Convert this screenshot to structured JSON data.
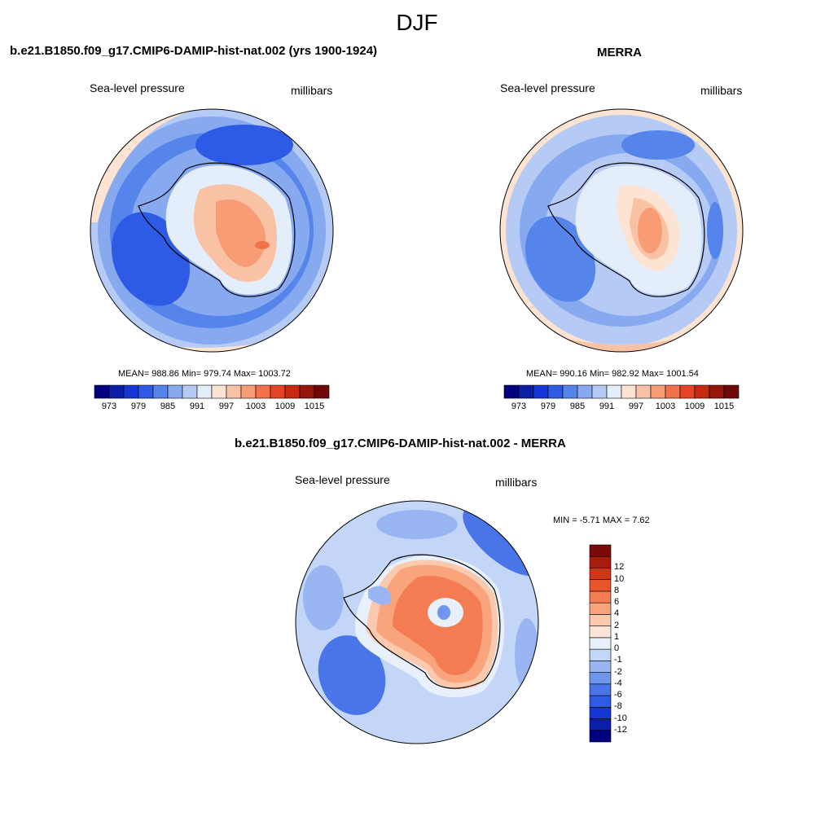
{
  "title": "DJF",
  "panels": [
    {
      "title": "b.e21.B1850.f09_g17.CMIP6-DAMIP-hist-nat.002 (yrs 1900-1924)",
      "left_label": "Sea-level pressure",
      "right_label": "millibars",
      "stats": "MEAN= 988.86  Min= 979.74  Max= 1003.72"
    },
    {
      "title": "MERRA",
      "left_label": "Sea-level pressure",
      "right_label": "millibars",
      "stats": "MEAN= 990.16  Min= 982.92  Max= 1001.54"
    },
    {
      "title": "b.e21.B1850.f09_g17.CMIP6-DAMIP-hist-nat.002 - MERRA",
      "left_label": "Sea-level pressure",
      "right_label": "millibars",
      "stats": "MIN =  -5.71 MAX =   7.62"
    }
  ],
  "colorbar_abs": {
    "colors": [
      "#000080",
      "#0a1fa5",
      "#1436d4",
      "#2d5be6",
      "#5585ea",
      "#86a9f0",
      "#b5cbf5",
      "#e4eefb",
      "#fde4d2",
      "#fac2a5",
      "#f79c75",
      "#f2714a",
      "#e54525",
      "#c62a10",
      "#96160a",
      "#6e0808"
    ],
    "tick_labels": [
      "973",
      "979",
      "985",
      "991",
      "997",
      "1003",
      "1009",
      "1015"
    ]
  },
  "colorbar_diff": {
    "colors": [
      "#000080",
      "#0a1fa5",
      "#1436d4",
      "#2d5be6",
      "#4a75e8",
      "#6f95ec",
      "#9ab6f2",
      "#c3d6f7",
      "#e8f0fb",
      "#fde6d8",
      "#fbc9ae",
      "#f9a47c",
      "#f47c53",
      "#e9542c",
      "#d03716",
      "#a81c0c",
      "#7a0a08"
    ],
    "tick_labels": [
      "-12",
      "-10",
      "-8",
      "-6",
      "-4",
      "-2",
      "-1",
      "0",
      "1",
      "2",
      "4",
      "6",
      "8",
      "10",
      "12"
    ]
  },
  "chart_data": [
    {
      "type": "heatmap",
      "title": "b.e21.B1850.f09_g17.CMIP6-DAMIP-hist-nat.002 (yrs 1900-1924)",
      "variable": "Sea-level pressure",
      "units": "millibars",
      "projection": "south polar stereographic",
      "mean": 988.86,
      "min": 979.74,
      "max": 1003.72,
      "levels": [
        973,
        976,
        979,
        982,
        985,
        988,
        991,
        994,
        997,
        1000,
        1003,
        1006,
        1009,
        1012,
        1015
      ]
    },
    {
      "type": "heatmap",
      "title": "MERRA",
      "variable": "Sea-level pressure",
      "units": "millibars",
      "projection": "south polar stereographic",
      "mean": 990.16,
      "min": 982.92,
      "max": 1001.54,
      "levels": [
        973,
        976,
        979,
        982,
        985,
        988,
        991,
        994,
        997,
        1000,
        1003,
        1006,
        1009,
        1012,
        1015
      ]
    },
    {
      "type": "heatmap",
      "title": "b.e21.B1850.f09_g17.CMIP6-DAMIP-hist-nat.002 - MERRA",
      "variable": "Sea-level pressure",
      "units": "millibars",
      "projection": "south polar stereographic",
      "min": -5.71,
      "max": 7.62,
      "levels": [
        -12,
        -10,
        -8,
        -6,
        -4,
        -2,
        -1,
        0,
        1,
        2,
        4,
        6,
        8,
        10,
        12
      ]
    }
  ]
}
